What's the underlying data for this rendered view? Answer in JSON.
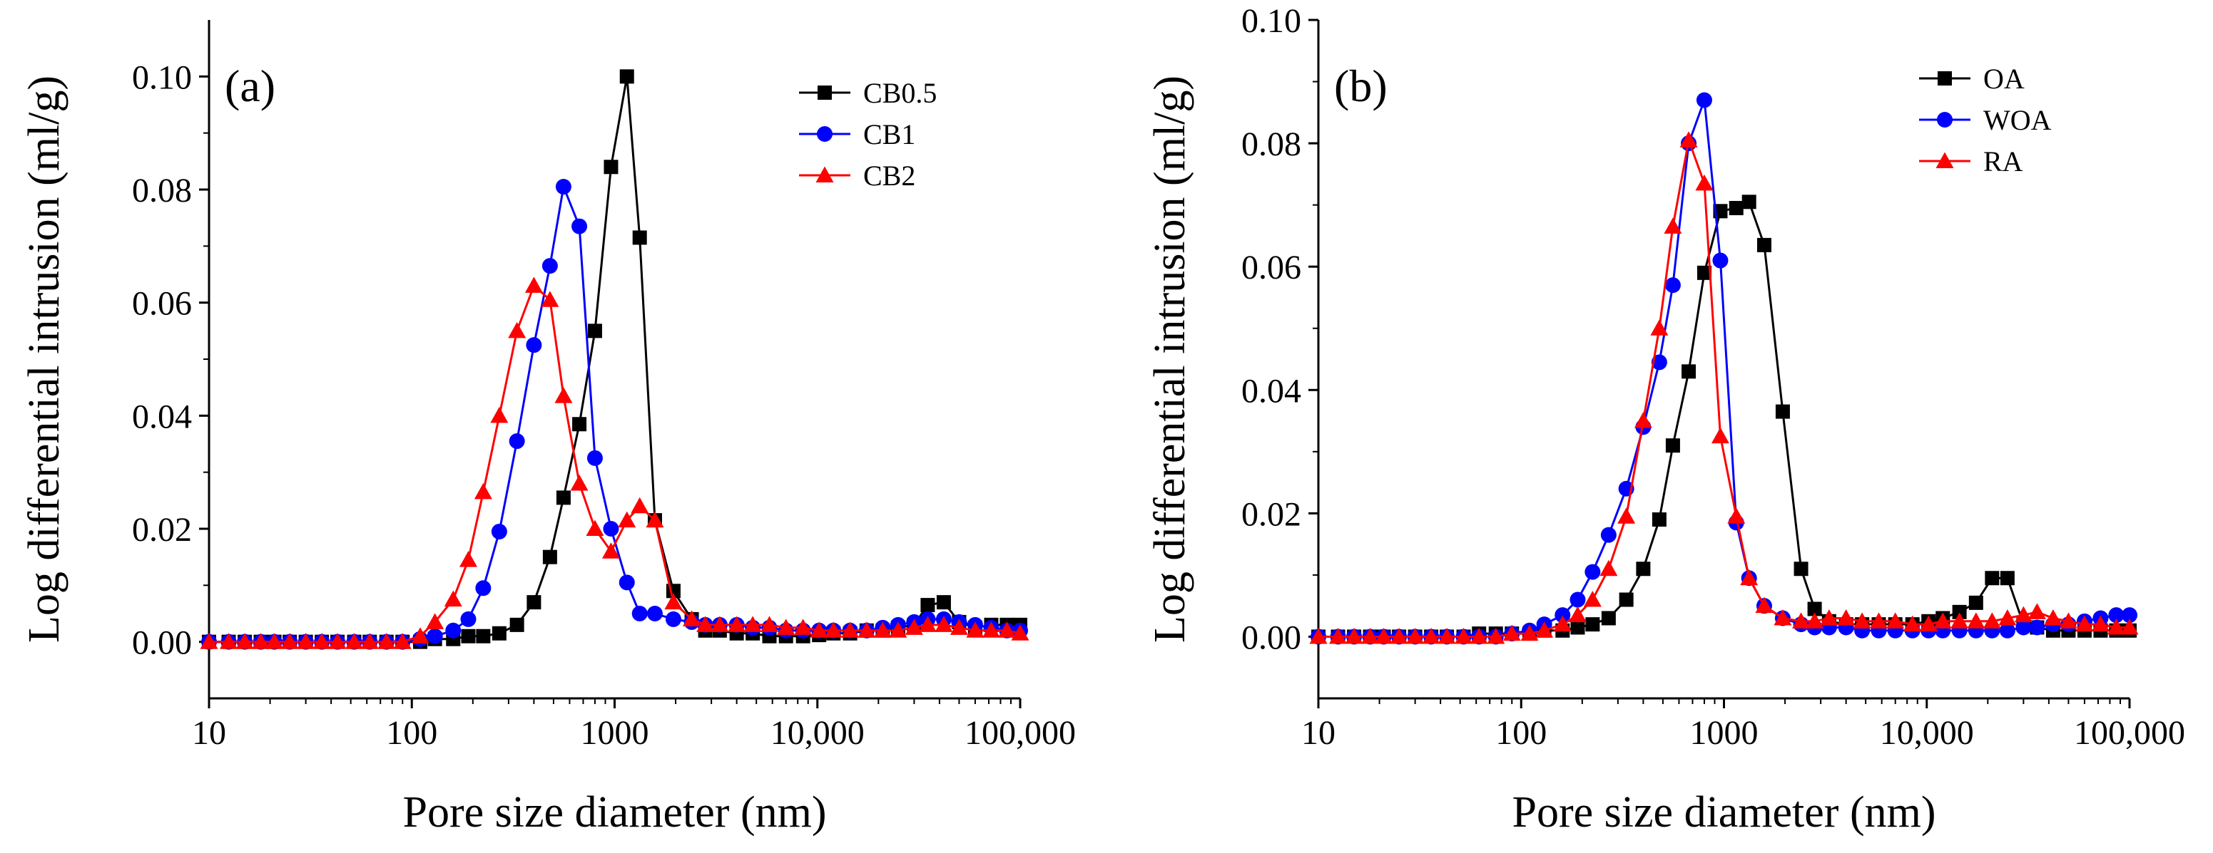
{
  "figure": {
    "panels": [
      {
        "id": "a",
        "panel_label": "(a)",
        "xlabel": "Pore size diameter (nm)",
        "ylabel": "Log differential intrusion (ml/g)"
      },
      {
        "id": "b",
        "panel_label": "(b)",
        "xlabel": "Pore size diameter (nm)",
        "ylabel": "Log differential intrusion (ml/g)"
      }
    ]
  },
  "chart_data": [
    {
      "type": "line",
      "panel_label": "(a)",
      "title": "",
      "xlabel": "Pore size diameter (nm)",
      "ylabel": "Log differential intrusion (ml/g)",
      "xscale": "log",
      "xlim": [
        10,
        100000
      ],
      "ylim": [
        -0.01,
        0.11
      ],
      "x_ticks": [
        10,
        100,
        1000,
        10000,
        100000
      ],
      "x_tick_labels": [
        "10",
        "100",
        "1000",
        "10,000",
        "100,000"
      ],
      "y_ticks": [
        0.0,
        0.02,
        0.04,
        0.06,
        0.08,
        0.1
      ],
      "y_tick_labels": [
        "0.00",
        "0.02",
        "0.04",
        "0.06",
        "0.08",
        "0.10"
      ],
      "legend_position": "top-right",
      "series": [
        {
          "name": "CB0.5",
          "color": "#000000",
          "marker": "square",
          "x": [
            10,
            12.5,
            15,
            18,
            21,
            25,
            30,
            36,
            43,
            52,
            62,
            75,
            90,
            110,
            130,
            160,
            190,
            225,
            270,
            330,
            400,
            480,
            560,
            670,
            800,
            960,
            1150,
            1330,
            1580,
            1950,
            2400,
            2800,
            3300,
            4000,
            4800,
            5800,
            7000,
            8500,
            10200,
            12000,
            14500,
            17500,
            21000,
            25000,
            30000,
            35000,
            42000,
            50000,
            60000,
            72000,
            86000,
            100000
          ],
          "y": [
            0.0,
            0.0,
            0.0,
            0.0,
            0.0,
            0.0,
            0.0,
            0.0,
            0.0,
            0.0,
            0.0,
            0.0,
            0.0,
            0.0,
            0.0005,
            0.0005,
            0.001,
            0.001,
            0.0015,
            0.003,
            0.007,
            0.015,
            0.0255,
            0.0385,
            0.055,
            0.084,
            0.1,
            0.0715,
            0.0215,
            0.009,
            0.004,
            0.002,
            0.002,
            0.0015,
            0.0015,
            0.001,
            0.001,
            0.001,
            0.0012,
            0.0015,
            0.0015,
            0.002,
            0.002,
            0.0025,
            0.003,
            0.0065,
            0.007,
            0.0035,
            0.0025,
            0.003,
            0.003,
            0.003
          ]
        },
        {
          "name": "CB1",
          "color": "#0000FF",
          "marker": "circle",
          "x": [
            10,
            12.5,
            15,
            18,
            21,
            25,
            30,
            36,
            43,
            52,
            62,
            75,
            90,
            110,
            130,
            160,
            190,
            225,
            270,
            330,
            400,
            480,
            560,
            670,
            800,
            960,
            1150,
            1330,
            1580,
            1950,
            2400,
            2800,
            3300,
            4000,
            4800,
            5800,
            7000,
            8500,
            10200,
            12000,
            14500,
            17500,
            21000,
            25000,
            30000,
            35000,
            42000,
            50000,
            60000,
            72000,
            86000,
            100000
          ],
          "y": [
            0.0,
            0.0,
            0.0,
            0.0,
            0.0,
            0.0,
            0.0,
            0.0,
            0.0,
            0.0,
            0.0,
            0.0,
            0.0,
            0.0005,
            0.001,
            0.002,
            0.004,
            0.0095,
            0.0195,
            0.0355,
            0.0525,
            0.0665,
            0.0805,
            0.0735,
            0.0325,
            0.02,
            0.0105,
            0.005,
            0.005,
            0.004,
            0.0035,
            0.003,
            0.003,
            0.003,
            0.0025,
            0.0025,
            0.002,
            0.002,
            0.002,
            0.002,
            0.002,
            0.002,
            0.0025,
            0.003,
            0.0035,
            0.004,
            0.004,
            0.0035,
            0.003,
            0.0025,
            0.002,
            0.002
          ]
        },
        {
          "name": "CB2",
          "color": "#FF0000",
          "marker": "triangle",
          "x": [
            10,
            12.5,
            15,
            18,
            21,
            25,
            30,
            36,
            43,
            52,
            62,
            75,
            90,
            110,
            130,
            160,
            190,
            225,
            270,
            330,
            400,
            480,
            560,
            670,
            800,
            960,
            1150,
            1330,
            1580,
            1950,
            2400,
            2800,
            3300,
            4000,
            4800,
            5800,
            7000,
            8500,
            10200,
            12000,
            14500,
            17500,
            21000,
            25000,
            30000,
            35000,
            42000,
            50000,
            60000,
            72000,
            86000,
            100000
          ],
          "y": [
            0.0,
            0.0,
            0.0,
            0.0,
            0.0,
            0.0,
            0.0,
            0.0,
            0.0,
            0.0,
            0.0,
            0.0,
            0.0,
            0.001,
            0.0035,
            0.0075,
            0.0145,
            0.0265,
            0.04,
            0.055,
            0.063,
            0.0605,
            0.0435,
            0.028,
            0.02,
            0.016,
            0.0215,
            0.024,
            0.0215,
            0.007,
            0.004,
            0.003,
            0.003,
            0.003,
            0.003,
            0.003,
            0.0025,
            0.0025,
            0.002,
            0.002,
            0.002,
            0.002,
            0.002,
            0.002,
            0.0025,
            0.003,
            0.003,
            0.0025,
            0.002,
            0.002,
            0.002,
            0.0015
          ]
        }
      ]
    },
    {
      "type": "line",
      "panel_label": "(b)",
      "title": "",
      "xlabel": "Pore size diameter (nm)",
      "ylabel": "Log differential intrusion (ml/g)",
      "xscale": "log",
      "xlim": [
        10,
        100000
      ],
      "ylim": [
        -0.01,
        0.1
      ],
      "x_ticks": [
        10,
        100,
        1000,
        10000,
        100000
      ],
      "x_tick_labels": [
        "10",
        "100",
        "1000",
        "10,000",
        "100,000"
      ],
      "y_ticks": [
        0.0,
        0.02,
        0.04,
        0.06,
        0.08,
        0.1
      ],
      "y_tick_labels": [
        "0.00",
        "0.02",
        "0.04",
        "0.06",
        "0.08",
        "0.10"
      ],
      "legend_position": "top-right",
      "series": [
        {
          "name": "OA",
          "color": "#000000",
          "marker": "square",
          "x": [
            10,
            12.5,
            15,
            18,
            21,
            25,
            30,
            36,
            43,
            52,
            62,
            75,
            90,
            110,
            130,
            160,
            190,
            225,
            270,
            330,
            400,
            480,
            560,
            670,
            800,
            960,
            1150,
            1330,
            1580,
            1950,
            2400,
            2800,
            3300,
            4000,
            4800,
            5800,
            7000,
            8500,
            10200,
            12000,
            14500,
            17500,
            21000,
            25000,
            30000,
            35000,
            42000,
            50000,
            60000,
            72000,
            86000,
            100000
          ],
          "y": [
            0.0,
            0.0,
            0.0,
            0.0,
            0.0,
            0.0,
            0.0,
            0.0,
            0.0,
            0.0,
            0.0005,
            0.0005,
            0.0005,
            0.0005,
            0.001,
            0.001,
            0.0015,
            0.002,
            0.003,
            0.006,
            0.011,
            0.019,
            0.031,
            0.043,
            0.059,
            0.069,
            0.0695,
            0.0705,
            0.0635,
            0.0365,
            0.011,
            0.0045,
            0.0025,
            0.002,
            0.002,
            0.002,
            0.002,
            0.002,
            0.0025,
            0.003,
            0.004,
            0.0055,
            0.0095,
            0.0095,
            0.002,
            0.0015,
            0.001,
            0.001,
            0.001,
            0.001,
            0.001,
            0.001
          ]
        },
        {
          "name": "WOA",
          "color": "#0000FF",
          "marker": "circle",
          "x": [
            10,
            12.5,
            15,
            18,
            21,
            25,
            30,
            36,
            43,
            52,
            62,
            75,
            90,
            110,
            130,
            160,
            190,
            225,
            270,
            330,
            400,
            480,
            560,
            670,
            800,
            960,
            1150,
            1330,
            1580,
            1950,
            2400,
            2800,
            3300,
            4000,
            4800,
            5800,
            7000,
            8500,
            10200,
            12000,
            14500,
            17500,
            21000,
            25000,
            30000,
            35000,
            42000,
            50000,
            60000,
            72000,
            86000,
            100000
          ],
          "y": [
            0.0,
            0.0,
            0.0,
            0.0,
            0.0,
            0.0,
            0.0,
            0.0,
            0.0,
            0.0,
            0.0,
            0.0,
            0.0005,
            0.001,
            0.002,
            0.0035,
            0.006,
            0.0105,
            0.0165,
            0.024,
            0.034,
            0.0445,
            0.057,
            0.08,
            0.087,
            0.061,
            0.0185,
            0.0095,
            0.005,
            0.003,
            0.002,
            0.0015,
            0.0015,
            0.0015,
            0.001,
            0.001,
            0.001,
            0.001,
            0.001,
            0.001,
            0.001,
            0.001,
            0.001,
            0.001,
            0.0015,
            0.0015,
            0.002,
            0.002,
            0.0025,
            0.003,
            0.0035,
            0.0035
          ]
        },
        {
          "name": "RA",
          "color": "#FF0000",
          "marker": "triangle",
          "x": [
            10,
            12.5,
            15,
            18,
            21,
            25,
            30,
            36,
            43,
            52,
            62,
            75,
            90,
            110,
            130,
            160,
            190,
            225,
            270,
            330,
            400,
            480,
            560,
            670,
            800,
            960,
            1150,
            1330,
            1580,
            1950,
            2400,
            2800,
            3300,
            4000,
            4800,
            5800,
            7000,
            8500,
            10200,
            12000,
            14500,
            17500,
            21000,
            25000,
            30000,
            35000,
            42000,
            50000,
            60000,
            72000,
            86000,
            100000
          ],
          "y": [
            0.0,
            0.0,
            0.0,
            0.0,
            0.0,
            0.0,
            0.0,
            0.0,
            0.0,
            0.0,
            0.0,
            0.0,
            0.0005,
            0.0005,
            0.001,
            0.002,
            0.0035,
            0.006,
            0.011,
            0.0195,
            0.035,
            0.05,
            0.0665,
            0.0805,
            0.0735,
            0.0325,
            0.0195,
            0.0095,
            0.005,
            0.003,
            0.0025,
            0.0025,
            0.003,
            0.003,
            0.0025,
            0.0025,
            0.0025,
            0.002,
            0.002,
            0.0025,
            0.0025,
            0.0025,
            0.0025,
            0.003,
            0.0035,
            0.004,
            0.003,
            0.0025,
            0.002,
            0.002,
            0.0015,
            0.0015
          ]
        }
      ]
    }
  ]
}
